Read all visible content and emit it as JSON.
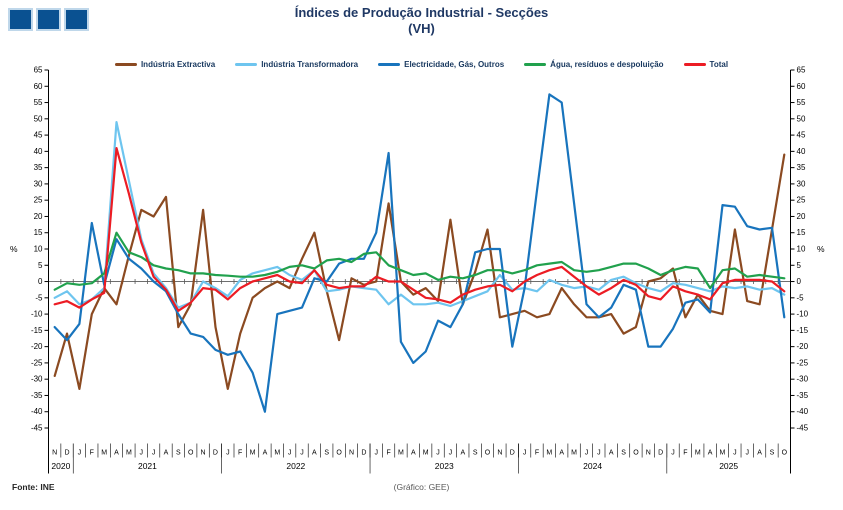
{
  "logo": {
    "fill": "#0A5191",
    "border": "#BFD7EA"
  },
  "title": "Índices de Produção Industrial - Secções",
  "subtitle": "(VH)",
  "footer": {
    "source": "Fonte: INE",
    "credit": "(Gráfico: GEE)"
  },
  "chart_data": {
    "type": "line",
    "title": "Índices de Produção Industrial - Secções (VH)",
    "ylim": [
      -45,
      65
    ],
    "ytick_step": 5,
    "y_axis_label": "%",
    "grid": false,
    "legend_position": "top",
    "months": [
      "N",
      "D",
      "J",
      "F",
      "M",
      "A",
      "M",
      "J",
      "J",
      "A",
      "S",
      "O",
      "N",
      "D",
      "J",
      "F",
      "M",
      "A",
      "M",
      "J",
      "J",
      "A",
      "S",
      "O",
      "N",
      "D",
      "J",
      "F",
      "M",
      "A",
      "M",
      "J",
      "J",
      "A",
      "S",
      "O",
      "N",
      "D",
      "J",
      "F",
      "M",
      "A",
      "M",
      "J",
      "J",
      "A",
      "S",
      "O",
      "N",
      "D",
      "J",
      "F",
      "M",
      "A",
      "M",
      "J",
      "J",
      "A",
      "S",
      "O"
    ],
    "years": [
      {
        "label": "2020",
        "months": 2
      },
      {
        "label": "2021",
        "months": 12
      },
      {
        "label": "2022",
        "months": 12
      },
      {
        "label": "2023",
        "months": 12
      },
      {
        "label": "2024",
        "months": 12
      },
      {
        "label": "2025",
        "months": 10
      }
    ],
    "series": [
      {
        "id": "industria-extractiva",
        "name": "Indústria Extractiva",
        "color": "#8B4A21",
        "values": [
          -29,
          -16,
          -33,
          -10,
          -2,
          -7,
          8,
          22,
          20,
          26,
          -14,
          -7,
          22,
          -14,
          -33,
          -16,
          -5,
          -2,
          0,
          -2,
          7,
          15,
          -3,
          -18,
          1,
          -1,
          0,
          24,
          0,
          -4,
          -2,
          -6,
          19,
          -7,
          3,
          16,
          -11,
          -10,
          -9,
          -11,
          -10,
          -2,
          -7,
          -11,
          -11,
          -10,
          -16,
          -14,
          0,
          1,
          4,
          -11,
          -4,
          -9,
          -10,
          16,
          -6,
          -7,
          16,
          39
        ]
      },
      {
        "id": "industria-transformadora",
        "name": "Indústria Transformadora",
        "color": "#6EC5EF",
        "values": [
          -5,
          -3,
          -7,
          -5.5,
          -2,
          49,
          31,
          13,
          2.5,
          -2,
          -8,
          -6.5,
          0,
          -2,
          -4.5,
          0.5,
          2.5,
          3.5,
          4.5,
          2,
          0.5,
          3.5,
          -3,
          -2.5,
          -1.5,
          -2,
          -2.5,
          -7,
          -4,
          -7,
          -7,
          -6.5,
          -7.5,
          -6,
          -4.5,
          -3,
          2,
          -2.5,
          -2,
          -3,
          0.5,
          -1,
          -2,
          -1.5,
          -2.5,
          0.5,
          1.5,
          -0.5,
          -2,
          -3,
          -0.5,
          -1,
          -2,
          -3,
          -1.5,
          -2,
          -1.5,
          -2.5,
          -2,
          -4
        ]
      },
      {
        "id": "electricidade-gas-outros",
        "name": "Electricidade, Gás, Outros",
        "color": "#1874BD",
        "values": [
          -14,
          -18,
          -13,
          18,
          -1,
          13,
          7,
          4,
          0,
          -3,
          -10,
          -16,
          -17,
          -21,
          -22.5,
          -21.5,
          -28,
          -40,
          -10,
          -9,
          -8,
          1,
          0,
          5.5,
          7,
          7,
          15,
          39.5,
          -18.5,
          -25,
          -21.5,
          -12,
          -14,
          -7,
          9,
          10,
          10,
          -20,
          -2,
          28,
          57.5,
          55,
          24,
          -7,
          -11,
          -8,
          -1,
          -2.5,
          -20,
          -20,
          -14.5,
          -6.5,
          -5.5,
          -9.5,
          23.5,
          23,
          17,
          16,
          16.5,
          -11
        ]
      },
      {
        "id": "agua-residuos-despoluicao",
        "name": "Água, resíduos e despoluição",
        "color": "#21A14D",
        "values": [
          -2.5,
          -0.5,
          -1,
          -0.5,
          2.5,
          15,
          9,
          7.5,
          5,
          4,
          3.5,
          2.5,
          2.5,
          2,
          1.8,
          1.5,
          1.5,
          2,
          3,
          4.5,
          5,
          4,
          6.5,
          7,
          6,
          8.5,
          9,
          5,
          3.5,
          2,
          2.5,
          0.5,
          1.5,
          1,
          2,
          3.5,
          3.5,
          2.5,
          3.5,
          5,
          5.5,
          6,
          3.5,
          3,
          3.5,
          4.5,
          5.5,
          5.5,
          4,
          2,
          3.5,
          4.5,
          4,
          -2,
          3.5,
          4,
          1.5,
          2,
          1.5,
          1
        ]
      },
      {
        "id": "total",
        "name": "Total",
        "color": "#EC1C24",
        "values": [
          -7,
          -6,
          -8,
          -5.5,
          -3.5,
          41,
          27,
          12,
          1.5,
          -2.5,
          -9,
          -6.5,
          -2,
          -2.5,
          -5.5,
          -2,
          0,
          1,
          2,
          0,
          -0.5,
          3.5,
          -1,
          -2,
          -1.5,
          -1.5,
          1.5,
          0,
          0,
          -2.5,
          -5,
          -5.5,
          -6.5,
          -4,
          -2.5,
          -1.5,
          -1,
          -3,
          0,
          2,
          3.5,
          4.5,
          1.5,
          -1.5,
          -4,
          -2,
          0.5,
          -1,
          -4.5,
          -5.5,
          -1.5,
          -3,
          -4,
          -5.5,
          -0.5,
          0.5,
          0.5,
          0.5,
          0,
          -3
        ]
      }
    ]
  }
}
